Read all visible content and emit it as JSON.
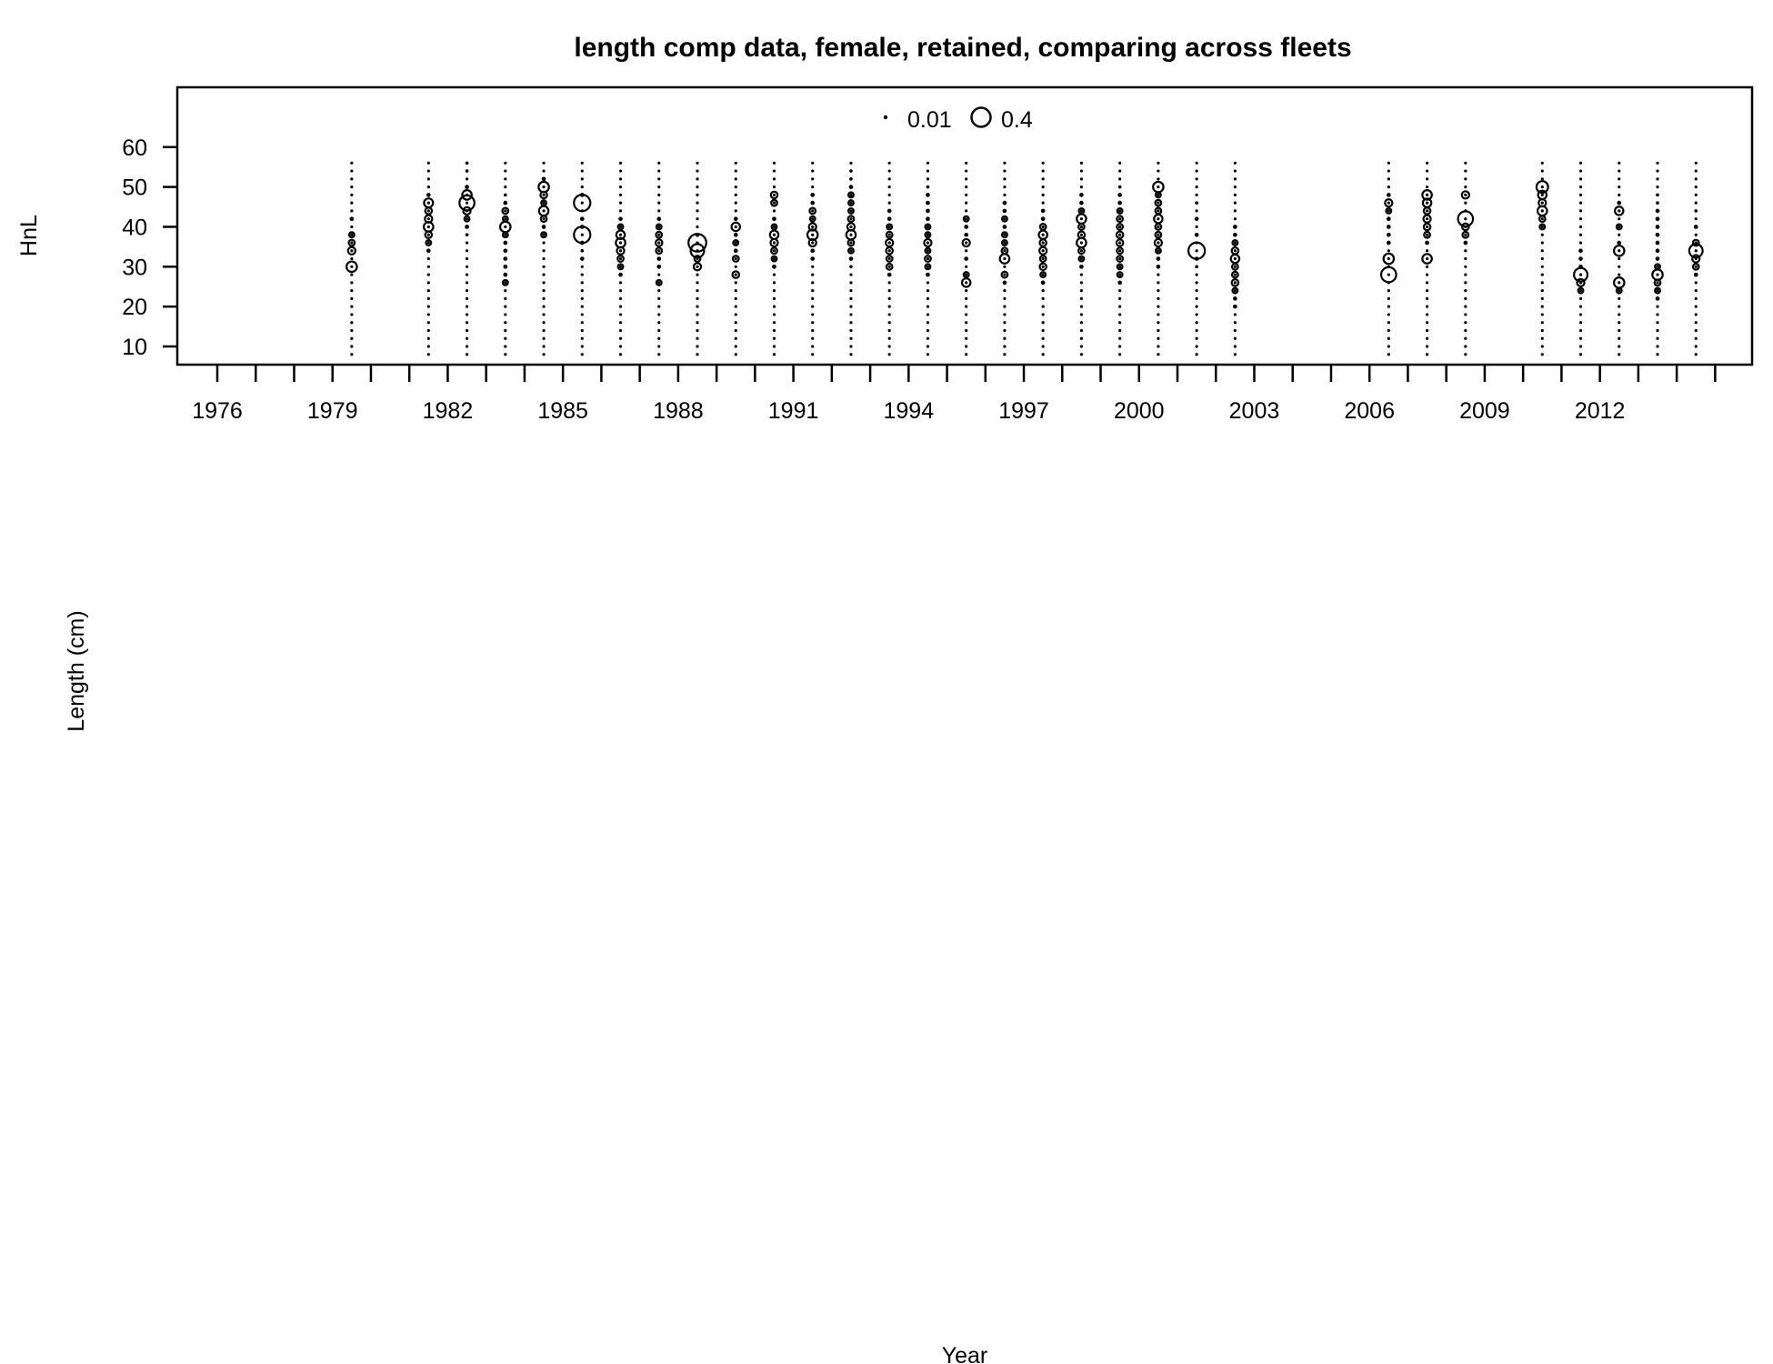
{
  "chart_data": {
    "type": "scatter",
    "title": "length comp data, female, retained, comparing across fleets",
    "panel_label": "HnL",
    "xlabel": "Year",
    "ylabel": "Length (cm)",
    "xlim": [
      1975,
      2016
    ],
    "ylim": [
      5,
      70
    ],
    "x_tick_labels": [
      "1976",
      "1979",
      "1982",
      "1985",
      "1988",
      "1991",
      "1994",
      "1997",
      "2000",
      "2003",
      "2006",
      "2009",
      "2012"
    ],
    "x_tick_values": [
      1976,
      1979,
      1982,
      1985,
      1988,
      1991,
      1994,
      1997,
      2000,
      2003,
      2006,
      2009,
      2012
    ],
    "y_ticks": [
      10,
      20,
      30,
      40,
      50,
      60
    ],
    "legend": {
      "position": "top-center",
      "entries": [
        {
          "label": "0.01",
          "value": 0.01
        },
        {
          "label": "0.4",
          "value": 0.4
        }
      ]
    },
    "length_bins": [
      8,
      10,
      12,
      14,
      16,
      18,
      20,
      22,
      24,
      26,
      28,
      30,
      32,
      34,
      36,
      38,
      40,
      42,
      44,
      46,
      48,
      50,
      52,
      54,
      56
    ],
    "series": [
      {
        "year": 1979.5,
        "bubbles": [
          [
            30,
            0.12
          ],
          [
            34,
            0.06
          ],
          [
            36,
            0.04
          ],
          [
            38,
            0.03
          ],
          [
            42,
            0.02
          ]
        ]
      },
      {
        "year": 1981.5,
        "bubbles": [
          [
            34,
            0.02
          ],
          [
            36,
            0.03
          ],
          [
            38,
            0.05
          ],
          [
            40,
            0.1
          ],
          [
            42,
            0.06
          ],
          [
            44,
            0.05
          ],
          [
            46,
            0.09
          ],
          [
            48,
            0.02
          ]
        ]
      },
      {
        "year": 1982.5,
        "bubbles": [
          [
            38,
            0.01
          ],
          [
            40,
            0.02
          ],
          [
            42,
            0.03
          ],
          [
            44,
            0.06
          ],
          [
            46,
            0.25
          ],
          [
            48,
            0.1
          ],
          [
            50,
            0.02
          ],
          [
            54,
            0.01
          ],
          [
            56,
            0.01
          ]
        ]
      },
      {
        "year": 1983.5,
        "bubbles": [
          [
            26,
            0.03
          ],
          [
            28,
            0.02
          ],
          [
            30,
            0.02
          ],
          [
            32,
            0.02
          ],
          [
            34,
            0.02
          ],
          [
            36,
            0.02
          ],
          [
            38,
            0.03
          ],
          [
            40,
            0.12
          ],
          [
            42,
            0.03
          ],
          [
            44,
            0.04
          ],
          [
            46,
            0.02
          ],
          [
            48,
            0.01
          ]
        ]
      },
      {
        "year": 1984.5,
        "bubbles": [
          [
            38,
            0.03
          ],
          [
            40,
            0.02
          ],
          [
            42,
            0.04
          ],
          [
            44,
            0.1
          ],
          [
            46,
            0.03
          ],
          [
            48,
            0.05
          ],
          [
            50,
            0.12
          ],
          [
            52,
            0.02
          ]
        ]
      },
      {
        "year": 1985.5,
        "bubbles": [
          [
            32,
            0.02
          ],
          [
            34,
            0.01
          ],
          [
            36,
            0.02
          ],
          [
            38,
            0.3
          ],
          [
            40,
            0.02
          ],
          [
            42,
            0.02
          ],
          [
            46,
            0.3
          ],
          [
            48,
            0.02
          ]
        ]
      },
      {
        "year": 1986.5,
        "bubbles": [
          [
            28,
            0.02
          ],
          [
            30,
            0.03
          ],
          [
            32,
            0.04
          ],
          [
            34,
            0.06
          ],
          [
            36,
            0.1
          ],
          [
            38,
            0.08
          ],
          [
            40,
            0.03
          ],
          [
            42,
            0.02
          ]
        ]
      },
      {
        "year": 1987.5,
        "bubbles": [
          [
            26,
            0.03
          ],
          [
            30,
            0.02
          ],
          [
            32,
            0.02
          ],
          [
            34,
            0.04
          ],
          [
            36,
            0.05
          ],
          [
            38,
            0.04
          ],
          [
            40,
            0.03
          ],
          [
            42,
            0.02
          ]
        ]
      },
      {
        "year": 1988.5,
        "bubbles": [
          [
            30,
            0.06
          ],
          [
            32,
            0.04
          ],
          [
            34,
            0.2
          ],
          [
            36,
            0.35
          ],
          [
            38,
            0.02
          ]
        ]
      },
      {
        "year": 1989.5,
        "bubbles": [
          [
            28,
            0.05
          ],
          [
            32,
            0.04
          ],
          [
            34,
            0.02
          ],
          [
            36,
            0.03
          ],
          [
            38,
            0.02
          ],
          [
            40,
            0.08
          ],
          [
            42,
            0.02
          ]
        ]
      },
      {
        "year": 1990.5,
        "bubbles": [
          [
            30,
            0.02
          ],
          [
            32,
            0.03
          ],
          [
            34,
            0.04
          ],
          [
            36,
            0.06
          ],
          [
            38,
            0.08
          ],
          [
            40,
            0.03
          ],
          [
            42,
            0.02
          ],
          [
            46,
            0.04
          ],
          [
            48,
            0.05
          ]
        ]
      },
      {
        "year": 1991.5,
        "bubbles": [
          [
            32,
            0.02
          ],
          [
            34,
            0.02
          ],
          [
            36,
            0.06
          ],
          [
            38,
            0.12
          ],
          [
            40,
            0.06
          ],
          [
            42,
            0.03
          ],
          [
            44,
            0.04
          ],
          [
            46,
            0.02
          ],
          [
            48,
            0.02
          ]
        ]
      },
      {
        "year": 1992.5,
        "bubbles": [
          [
            30,
            0.01
          ],
          [
            32,
            0.02
          ],
          [
            34,
            0.03
          ],
          [
            36,
            0.04
          ],
          [
            38,
            0.1
          ],
          [
            40,
            0.06
          ],
          [
            42,
            0.04
          ],
          [
            44,
            0.03
          ],
          [
            46,
            0.03
          ],
          [
            48,
            0.03
          ],
          [
            50,
            0.02
          ],
          [
            52,
            0.01
          ],
          [
            54,
            0.01
          ]
        ]
      },
      {
        "year": 1993.5,
        "bubbles": [
          [
            28,
            0.02
          ],
          [
            30,
            0.04
          ],
          [
            32,
            0.04
          ],
          [
            34,
            0.05
          ],
          [
            36,
            0.06
          ],
          [
            38,
            0.04
          ],
          [
            40,
            0.03
          ],
          [
            42,
            0.02
          ],
          [
            44,
            0.02
          ]
        ]
      },
      {
        "year": 1994.5,
        "bubbles": [
          [
            28,
            0.02
          ],
          [
            30,
            0.03
          ],
          [
            32,
            0.04
          ],
          [
            34,
            0.03
          ],
          [
            36,
            0.06
          ],
          [
            38,
            0.03
          ],
          [
            40,
            0.03
          ],
          [
            42,
            0.02
          ],
          [
            44,
            0.02
          ],
          [
            46,
            0.02
          ],
          [
            48,
            0.02
          ],
          [
            50,
            0.01
          ]
        ]
      },
      {
        "year": 1995.5,
        "bubbles": [
          [
            26,
            0.08
          ],
          [
            28,
            0.03
          ],
          [
            32,
            0.02
          ],
          [
            36,
            0.06
          ],
          [
            38,
            0.02
          ],
          [
            40,
            0.02
          ],
          [
            42,
            0.03
          ]
        ]
      },
      {
        "year": 1996.5,
        "bubbles": [
          [
            26,
            0.02
          ],
          [
            28,
            0.04
          ],
          [
            32,
            0.1
          ],
          [
            34,
            0.04
          ],
          [
            36,
            0.03
          ],
          [
            38,
            0.03
          ],
          [
            40,
            0.02
          ],
          [
            42,
            0.03
          ],
          [
            44,
            0.02
          ],
          [
            46,
            0.02
          ]
        ]
      },
      {
        "year": 1997.5,
        "bubbles": [
          [
            26,
            0.02
          ],
          [
            28,
            0.03
          ],
          [
            30,
            0.05
          ],
          [
            32,
            0.04
          ],
          [
            34,
            0.06
          ],
          [
            36,
            0.05
          ],
          [
            38,
            0.08
          ],
          [
            40,
            0.04
          ],
          [
            42,
            0.02
          ],
          [
            44,
            0.02
          ]
        ]
      },
      {
        "year": 1998.5,
        "bubbles": [
          [
            30,
            0.02
          ],
          [
            32,
            0.03
          ],
          [
            34,
            0.04
          ],
          [
            36,
            0.1
          ],
          [
            38,
            0.05
          ],
          [
            40,
            0.04
          ],
          [
            42,
            0.1
          ],
          [
            44,
            0.03
          ],
          [
            46,
            0.02
          ],
          [
            48,
            0.02
          ]
        ]
      },
      {
        "year": 1999.5,
        "bubbles": [
          [
            26,
            0.02
          ],
          [
            28,
            0.03
          ],
          [
            30,
            0.03
          ],
          [
            32,
            0.04
          ],
          [
            34,
            0.04
          ],
          [
            36,
            0.05
          ],
          [
            38,
            0.05
          ],
          [
            40,
            0.04
          ],
          [
            42,
            0.04
          ],
          [
            44,
            0.03
          ],
          [
            46,
            0.02
          ],
          [
            48,
            0.02
          ],
          [
            50,
            0.01
          ]
        ]
      },
      {
        "year": 2000.5,
        "bubbles": [
          [
            30,
            0.02
          ],
          [
            32,
            0.02
          ],
          [
            34,
            0.03
          ],
          [
            36,
            0.06
          ],
          [
            38,
            0.04
          ],
          [
            40,
            0.04
          ],
          [
            42,
            0.08
          ],
          [
            44,
            0.04
          ],
          [
            46,
            0.04
          ],
          [
            48,
            0.03
          ],
          [
            50,
            0.12
          ]
        ]
      },
      {
        "year": 2001.5,
        "bubbles": [
          [
            30,
            0.01
          ],
          [
            32,
            0.02
          ],
          [
            34,
            0.3
          ],
          [
            38,
            0.02
          ],
          [
            42,
            0.02
          ],
          [
            46,
            0.01
          ]
        ]
      },
      {
        "year": 2002.5,
        "bubbles": [
          [
            20,
            0.02
          ],
          [
            22,
            0.02
          ],
          [
            24,
            0.03
          ],
          [
            26,
            0.05
          ],
          [
            28,
            0.04
          ],
          [
            30,
            0.04
          ],
          [
            32,
            0.08
          ],
          [
            34,
            0.05
          ],
          [
            36,
            0.03
          ],
          [
            38,
            0.02
          ],
          [
            40,
            0.02
          ]
        ]
      },
      {
        "year": 2006.5,
        "bubbles": [
          [
            28,
            0.25
          ],
          [
            32,
            0.12
          ],
          [
            36,
            0.02
          ],
          [
            38,
            0.02
          ],
          [
            40,
            0.02
          ],
          [
            42,
            0.02
          ],
          [
            44,
            0.03
          ],
          [
            46,
            0.06
          ],
          [
            48,
            0.02
          ]
        ]
      },
      {
        "year": 2007.5,
        "bubbles": [
          [
            32,
            0.1
          ],
          [
            36,
            0.02
          ],
          [
            38,
            0.04
          ],
          [
            40,
            0.05
          ],
          [
            42,
            0.06
          ],
          [
            44,
            0.05
          ],
          [
            46,
            0.08
          ],
          [
            48,
            0.1
          ]
        ]
      },
      {
        "year": 2008.5,
        "bubbles": [
          [
            36,
            0.02
          ],
          [
            38,
            0.04
          ],
          [
            40,
            0.05
          ],
          [
            42,
            0.25
          ],
          [
            48,
            0.06
          ]
        ]
      },
      {
        "year": 2010.5,
        "bubbles": [
          [
            40,
            0.03
          ],
          [
            42,
            0.04
          ],
          [
            44,
            0.1
          ],
          [
            46,
            0.06
          ],
          [
            48,
            0.08
          ],
          [
            50,
            0.15
          ]
        ]
      },
      {
        "year": 2011.5,
        "bubbles": [
          [
            24,
            0.03
          ],
          [
            26,
            0.06
          ],
          [
            28,
            0.2
          ],
          [
            30,
            0.02
          ],
          [
            32,
            0.02
          ],
          [
            34,
            0.02
          ]
        ]
      },
      {
        "year": 2012.5,
        "bubbles": [
          [
            24,
            0.03
          ],
          [
            26,
            0.12
          ],
          [
            34,
            0.12
          ],
          [
            36,
            0.02
          ],
          [
            40,
            0.03
          ],
          [
            44,
            0.08
          ],
          [
            46,
            0.02
          ]
        ]
      },
      {
        "year": 2013.5,
        "bubbles": [
          [
            22,
            0.02
          ],
          [
            24,
            0.03
          ],
          [
            26,
            0.04
          ],
          [
            28,
            0.12
          ],
          [
            30,
            0.03
          ],
          [
            32,
            0.02
          ],
          [
            34,
            0.02
          ],
          [
            36,
            0.02
          ],
          [
            38,
            0.02
          ],
          [
            40,
            0.02
          ],
          [
            42,
            0.02
          ],
          [
            44,
            0.02
          ],
          [
            46,
            0.01
          ],
          [
            48,
            0.01
          ]
        ]
      },
      {
        "year": 2014.5,
        "bubbles": [
          [
            28,
            0.02
          ],
          [
            30,
            0.04
          ],
          [
            32,
            0.06
          ],
          [
            34,
            0.2
          ],
          [
            36,
            0.04
          ],
          [
            40,
            0.02
          ],
          [
            44,
            0.01
          ]
        ]
      }
    ]
  }
}
